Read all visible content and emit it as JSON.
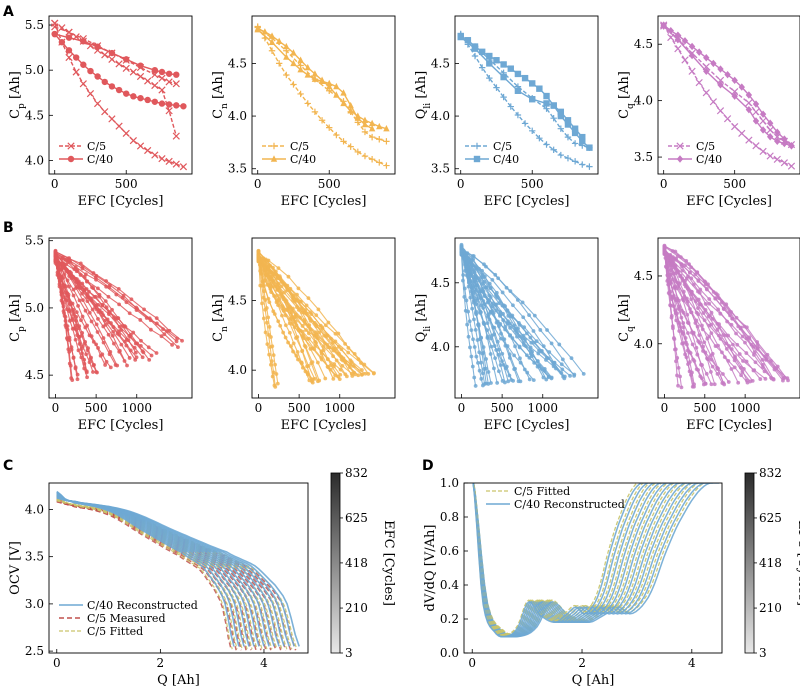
{
  "panel_labels": [
    "A",
    "B",
    "C",
    "D"
  ],
  "colors": {
    "cp": "#e0585c",
    "cn": "#f2b550",
    "qli": "#6ea8d4",
    "cq": "#c67bc3",
    "c5_measured": "#c0504d",
    "c5_fitted": "#c9c46a",
    "c40_reconstructed": "#6ea8d4",
    "colorbar_top": "#2b2b2b",
    "colorbar_bottom": "#e8e8e8"
  },
  "chart_data": [
    {
      "id": "A1",
      "type": "line",
      "panel": "A",
      "xlabel": "EFC [Cycles]",
      "ylabel": "C",
      "ylabel_sub": "p",
      "ylabel_unit": " [Ah]",
      "xlim": [
        -40,
        960
      ],
      "ylim": [
        3.85,
        5.6
      ],
      "xticks": [
        0,
        500
      ],
      "yticks": [
        4.0,
        4.5,
        5.0,
        5.5
      ],
      "legend": [
        "C/5",
        "C/40"
      ],
      "series": [
        {
          "name": "C/5 branch 1",
          "marker": "x",
          "x": [
            0,
            50,
            100,
            150,
            200,
            250,
            300,
            350,
            400,
            450,
            500,
            550,
            600,
            650,
            700,
            750,
            800,
            850,
            900
          ],
          "y": [
            5.52,
            5.31,
            5.14,
            4.98,
            4.85,
            4.74,
            4.63,
            4.54,
            4.46,
            4.38,
            4.3,
            4.22,
            4.16,
            4.11,
            4.06,
            4.02,
            3.99,
            3.96,
            3.93
          ]
        },
        {
          "name": "C/5 branch 2",
          "marker": "x",
          "x": [
            0,
            50,
            100,
            150,
            200,
            250,
            300,
            350,
            400,
            450,
            500,
            550,
            600,
            650,
            700,
            750,
            800,
            850
          ],
          "y": [
            5.52,
            5.47,
            5.42,
            5.37,
            5.32,
            5.27,
            5.22,
            5.17,
            5.12,
            5.07,
            5.02,
            4.98,
            4.93,
            4.88,
            4.83,
            4.78,
            4.55,
            4.27
          ]
        },
        {
          "name": "C/5 branch 3",
          "marker": "x",
          "x": [
            0,
            100,
            200,
            300,
            400,
            500,
            600,
            700,
            750,
            800,
            850
          ],
          "y": [
            5.48,
            5.42,
            5.35,
            5.27,
            5.19,
            5.11,
            5.03,
            4.95,
            4.91,
            4.87,
            4.85
          ]
        },
        {
          "name": "C/40 branch 1",
          "marker": "o",
          "x": [
            0,
            50,
            100,
            150,
            200,
            250,
            300,
            350,
            400,
            450,
            500,
            550,
            600,
            650,
            700,
            750,
            800,
            850,
            900
          ],
          "y": [
            5.4,
            5.31,
            5.22,
            5.14,
            5.06,
            4.99,
            4.93,
            4.87,
            4.82,
            4.78,
            4.74,
            4.71,
            4.69,
            4.67,
            4.65,
            4.63,
            4.62,
            4.61,
            4.6
          ]
        },
        {
          "name": "C/40 branch 2",
          "marker": "o",
          "x": [
            0,
            100,
            200,
            300,
            400,
            500,
            600,
            700,
            750,
            800,
            850
          ],
          "y": [
            5.4,
            5.36,
            5.32,
            5.26,
            5.19,
            5.12,
            5.05,
            5.0,
            4.98,
            4.96,
            4.95
          ]
        }
      ]
    },
    {
      "id": "A2",
      "type": "line",
      "panel": "A",
      "xlabel": "EFC [Cycles]",
      "ylabel": "C",
      "ylabel_sub": "n",
      "ylabel_unit": " [Ah]",
      "xlim": [
        -40,
        960
      ],
      "ylim": [
        3.45,
        4.95
      ],
      "xticks": [
        0,
        500
      ],
      "yticks": [
        3.5,
        4.0,
        4.5
      ],
      "legend": [
        "C/5",
        "C/40"
      ],
      "series": [
        {
          "name": "C/5 branch 1",
          "marker": "+",
          "x": [
            0,
            50,
            100,
            150,
            200,
            250,
            300,
            350,
            400,
            450,
            500,
            550,
            600,
            650,
            700,
            750,
            800,
            850,
            900
          ],
          "y": [
            4.85,
            4.74,
            4.62,
            4.5,
            4.39,
            4.3,
            4.21,
            4.12,
            4.04,
            3.96,
            3.89,
            3.82,
            3.76,
            3.71,
            3.66,
            3.62,
            3.59,
            3.56,
            3.53
          ]
        },
        {
          "name": "C/5 branch 2",
          "marker": "+",
          "x": [
            0,
            100,
            200,
            300,
            400,
            500,
            600,
            650,
            700,
            750,
            800,
            850,
            900
          ],
          "y": [
            4.84,
            4.74,
            4.62,
            4.48,
            4.35,
            4.24,
            4.14,
            4.04,
            3.94,
            3.85,
            3.8,
            3.78,
            3.76
          ]
        },
        {
          "name": "C/40 branch 1",
          "marker": "^",
          "x": [
            0,
            50,
            100,
            150,
            200,
            250,
            300,
            350,
            400,
            450,
            500,
            550,
            600,
            650,
            700,
            750,
            800,
            850,
            900
          ],
          "y": [
            4.83,
            4.8,
            4.76,
            4.71,
            4.66,
            4.6,
            4.53,
            4.46,
            4.4,
            4.34,
            4.28,
            4.2,
            4.12,
            4.05,
            4.0,
            3.96,
            3.93,
            3.9,
            3.88
          ]
        },
        {
          "name": "C/40 branch 2",
          "marker": "^",
          "x": [
            0,
            100,
            200,
            250,
            300,
            350,
            400,
            450,
            500,
            550,
            600,
            650,
            700,
            750,
            800
          ],
          "y": [
            4.82,
            4.7,
            4.56,
            4.5,
            4.44,
            4.39,
            4.35,
            4.33,
            4.31,
            4.28,
            4.22,
            4.1,
            3.98,
            3.92,
            3.88
          ]
        }
      ]
    },
    {
      "id": "A3",
      "type": "line",
      "panel": "A",
      "xlabel": "EFC [Cycles]",
      "ylabel": "Q",
      "ylabel_sub": "li",
      "ylabel_unit": " [Ah]",
      "xlim": [
        -40,
        960
      ],
      "ylim": [
        3.45,
        4.95
      ],
      "xticks": [
        0,
        500
      ],
      "yticks": [
        3.5,
        4.0,
        4.5
      ],
      "legend": [
        "C/5",
        "C/40"
      ],
      "series": [
        {
          "name": "C/5 branch 1",
          "marker": "+",
          "x": [
            0,
            50,
            100,
            150,
            200,
            250,
            300,
            350,
            400,
            450,
            500,
            550,
            600,
            650,
            700,
            750,
            800,
            850,
            900
          ],
          "y": [
            4.78,
            4.68,
            4.57,
            4.46,
            4.36,
            4.27,
            4.18,
            4.09,
            4.01,
            3.93,
            3.86,
            3.79,
            3.73,
            3.68,
            3.63,
            3.6,
            3.57,
            3.54,
            3.52
          ]
        },
        {
          "name": "C/5 branch 2",
          "marker": "+",
          "x": [
            0,
            100,
            200,
            300,
            400,
            500,
            600,
            650,
            700,
            750,
            800,
            850,
            900
          ],
          "y": [
            4.77,
            4.66,
            4.54,
            4.41,
            4.28,
            4.17,
            4.07,
            3.98,
            3.88,
            3.8,
            3.74,
            3.72,
            3.7
          ]
        },
        {
          "name": "C/40 branch 1",
          "marker": "s",
          "x": [
            0,
            50,
            100,
            150,
            200,
            250,
            300,
            350,
            400,
            450,
            500,
            550,
            600,
            650,
            700,
            750,
            800,
            850,
            900
          ],
          "y": [
            4.76,
            4.72,
            4.66,
            4.61,
            4.57,
            4.53,
            4.49,
            4.45,
            4.4,
            4.36,
            4.31,
            4.26,
            4.19,
            4.1,
            4.0,
            3.92,
            3.84,
            3.76,
            3.7
          ]
        },
        {
          "name": "C/40 branch 2",
          "marker": "s",
          "x": [
            0,
            100,
            200,
            300,
            400,
            500,
            600,
            650,
            700,
            750,
            800,
            850
          ],
          "y": [
            4.75,
            4.64,
            4.5,
            4.37,
            4.24,
            4.16,
            4.12,
            4.1,
            4.04,
            3.96,
            3.88,
            3.8
          ]
        }
      ]
    },
    {
      "id": "A4",
      "type": "line",
      "panel": "A",
      "xlabel": "EFC [Cycles]",
      "ylabel": "C",
      "ylabel_sub": "q",
      "ylabel_unit": " [Ah]",
      "xlim": [
        -40,
        960
      ],
      "ylim": [
        3.35,
        4.75
      ],
      "xticks": [
        0,
        500
      ],
      "yticks": [
        3.5,
        4.0,
        4.5
      ],
      "legend": [
        "C/5",
        "C/40"
      ],
      "series": [
        {
          "name": "C/5 branch 1",
          "marker": "x",
          "x": [
            0,
            50,
            100,
            150,
            200,
            250,
            300,
            350,
            400,
            450,
            500,
            550,
            600,
            650,
            700,
            750,
            800,
            850,
            900
          ],
          "y": [
            4.67,
            4.56,
            4.46,
            4.36,
            4.26,
            4.16,
            4.07,
            3.99,
            3.91,
            3.84,
            3.77,
            3.71,
            3.65,
            3.6,
            3.55,
            3.51,
            3.48,
            3.45,
            3.42
          ]
        },
        {
          "name": "C/5 branch 2",
          "marker": "x",
          "x": [
            0,
            100,
            200,
            300,
            400,
            500,
            600,
            650,
            700,
            750,
            800,
            850,
            900
          ],
          "y": [
            4.66,
            4.55,
            4.42,
            4.3,
            4.18,
            4.08,
            3.98,
            3.9,
            3.82,
            3.74,
            3.68,
            3.64,
            3.61
          ]
        },
        {
          "name": "C/40 branch 1",
          "marker": "D",
          "x": [
            0,
            50,
            100,
            150,
            200,
            250,
            300,
            350,
            400,
            450,
            500,
            550,
            600,
            650,
            700,
            750,
            800,
            850,
            900
          ],
          "y": [
            4.67,
            4.62,
            4.58,
            4.53,
            4.48,
            4.43,
            4.38,
            4.33,
            4.28,
            4.23,
            4.18,
            4.12,
            4.05,
            3.97,
            3.88,
            3.8,
            3.72,
            3.66,
            3.6
          ]
        },
        {
          "name": "C/40 branch 2",
          "marker": "D",
          "x": [
            0,
            100,
            200,
            300,
            400,
            500,
            600,
            650,
            700,
            750,
            800,
            850,
            900
          ],
          "y": [
            4.66,
            4.54,
            4.4,
            4.26,
            4.14,
            4.04,
            3.92,
            3.82,
            3.74,
            3.68,
            3.64,
            3.62,
            3.6
          ]
        }
      ]
    },
    {
      "id": "B1",
      "type": "line",
      "panel": "B",
      "description_of_data": "ensemble of many cells (fan of trajectories)",
      "xlabel": "EFC [Cycles]",
      "ylabel": "C",
      "ylabel_sub": "p",
      "ylabel_unit": " [Ah]",
      "xlim": [
        -80,
        1680
      ],
      "ylim": [
        4.33,
        5.52
      ],
      "xticks": [
        0,
        500,
        1000
      ],
      "yticks": [
        4.5,
        5.0,
        5.5
      ],
      "ensemble": {
        "count": 30,
        "x0": 0,
        "y0_range": [
          5.34,
          5.42
        ],
        "x_end_range": [
          120,
          1560
        ],
        "y_end_range": [
          4.38,
          4.78
        ]
      }
    },
    {
      "id": "B2",
      "type": "line",
      "panel": "B",
      "xlabel": "EFC [Cycles]",
      "ylabel": "C",
      "ylabel_sub": "n",
      "ylabel_unit": " [Ah]",
      "xlim": [
        -80,
        1680
      ],
      "ylim": [
        3.8,
        4.95
      ],
      "xticks": [
        0,
        500,
        1000
      ],
      "yticks": [
        4.0,
        4.5
      ],
      "ensemble": {
        "count": 30,
        "x0": 0,
        "y0_range": [
          4.78,
          4.86
        ],
        "x_end_range": [
          150,
          1520
        ],
        "y_end_range": [
          3.85,
          4.02
        ]
      }
    },
    {
      "id": "B3",
      "type": "line",
      "panel": "B",
      "xlabel": "EFC [Cycles]",
      "ylabel": "Q",
      "ylabel_sub": "li",
      "ylabel_unit": " [Ah]",
      "xlim": [
        -80,
        1680
      ],
      "ylim": [
        3.6,
        4.85
      ],
      "xticks": [
        0,
        500,
        1000
      ],
      "yticks": [
        4.0,
        4.5
      ],
      "ensemble": {
        "count": 30,
        "x0": 0,
        "y0_range": [
          4.72,
          4.79
        ],
        "x_end_range": [
          150,
          1520
        ],
        "y_end_range": [
          3.66,
          3.82
        ]
      }
    },
    {
      "id": "B4",
      "type": "line",
      "panel": "B",
      "xlabel": "EFC [Cycles]",
      "ylabel": "C",
      "ylabel_sub": "q",
      "ylabel_unit": " [Ah]",
      "xlim": [
        -80,
        1680
      ],
      "ylim": [
        3.6,
        4.78
      ],
      "xticks": [
        0,
        500,
        1000
      ],
      "yticks": [
        4.0,
        4.5
      ],
      "ensemble": {
        "count": 30,
        "x0": 0,
        "y0_range": [
          4.66,
          4.72
        ],
        "x_end_range": [
          150,
          1540
        ],
        "y_end_range": [
          3.66,
          3.76
        ]
      }
    },
    {
      "id": "C",
      "type": "line",
      "panel": "C",
      "xlabel": "Q [Ah]",
      "ylabel": "OCV [V]",
      "xlim": [
        -0.15,
        4.85
      ],
      "ylim": [
        2.48,
        4.28
      ],
      "xticks": [
        0,
        2,
        4
      ],
      "yticks": [
        2.5,
        3.0,
        3.5,
        4.0
      ],
      "legend": [
        "C/40 Reconstructed",
        "C/5 Measured",
        "C/5 Fitted"
      ],
      "curves": {
        "count": 14,
        "qmax_range": [
          4.68,
          3.42
        ],
        "v_start": [
          4.19,
          4.12
        ],
        "v_knots_q_frac": [
          0,
          0.04,
          0.1,
          0.3,
          0.5,
          0.7,
          0.82,
          0.9,
          0.95,
          1.0
        ],
        "v_knots": [
          4.18,
          4.1,
          4.07,
          3.98,
          3.76,
          3.55,
          3.4,
          3.2,
          3.0,
          2.55
        ]
      },
      "colorbar": {
        "label": "EFC [Cycles]",
        "ticks": [
          832,
          625,
          418,
          210,
          3
        ],
        "range": [
          3,
          832
        ]
      }
    },
    {
      "id": "D",
      "type": "line",
      "panel": "D",
      "xlabel": "Q [Ah]",
      "ylabel": "dV/dQ [V/Ah]",
      "xlim": [
        -0.15,
        4.55
      ],
      "ylim": [
        0.0,
        1.0
      ],
      "xticks": [
        0,
        2,
        4
      ],
      "yticks": [
        0.0,
        0.2,
        0.4,
        0.6,
        0.8,
        1.0
      ],
      "legend": [
        "C/5 Fitted",
        "C/40 Reconstructed"
      ],
      "curves": {
        "count": 12,
        "qmax_range": [
          4.5,
          3.2
        ],
        "knots_q_frac": [
          0.0,
          0.06,
          0.13,
          0.2,
          0.26,
          0.32,
          0.39,
          0.47,
          0.53,
          0.59,
          0.64,
          0.69,
          0.73,
          0.78,
          0.83,
          0.9,
          0.96
        ],
        "knots_v": [
          1.05,
          0.3,
          0.12,
          0.1,
          0.15,
          0.3,
          0.22,
          0.18,
          0.22,
          0.27,
          0.23,
          0.28,
          0.38,
          0.58,
          0.75,
          0.92,
          1.0
        ]
      },
      "colorbar": {
        "label": "EFC [Cycles]",
        "ticks": [
          832,
          625,
          418,
          210,
          3
        ],
        "range": [
          3,
          832
        ]
      }
    }
  ]
}
